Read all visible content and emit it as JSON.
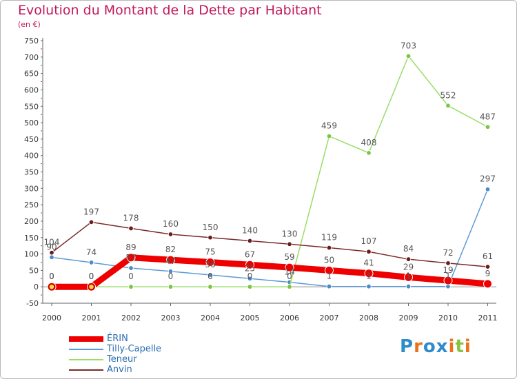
{
  "title": "Evolution du Montant de la Dette par Habitant",
  "subtitle": "(en €)",
  "brand": {
    "text": "Proxiti",
    "colors": [
      "#2e8bcc",
      "#e8731c",
      "#2e8bcc",
      "#2e8bcc",
      "#e8731c",
      "#86c440",
      "#e8731c"
    ]
  },
  "chart_data": {
    "type": "line",
    "x": [
      "2000",
      "2001",
      "2002",
      "2003",
      "2004",
      "2005",
      "2006",
      "2007",
      "2008",
      "2009",
      "2010",
      "2011"
    ],
    "ylim": [
      -50,
      750
    ],
    "yticks": [
      -50,
      0,
      50,
      100,
      150,
      200,
      250,
      300,
      350,
      400,
      450,
      500,
      550,
      600,
      650,
      700,
      750
    ],
    "grid": false,
    "legend_position": "bottom-left",
    "series": [
      {
        "name": "ÉRIN",
        "color": "#ee0000",
        "point_color": "#ee0000",
        "label_color": "#555555",
        "values": [
          0,
          0,
          89,
          82,
          75,
          67,
          59,
          50,
          41,
          29,
          19,
          9
        ],
        "labels": [
          "0",
          "0",
          "89",
          "82",
          "75",
          "67",
          "59",
          "50",
          "41",
          "29",
          "19",
          "9"
        ]
      },
      {
        "name": "Tilly-Capelle",
        "color": "#5b9bd5",
        "point_color": "#4a8cc8",
        "label_color": "#555555",
        "values": [
          90,
          74,
          57,
          47,
          36,
          25,
          14,
          1,
          1,
          1,
          1,
          297
        ],
        "labels": [
          "90",
          "74",
          "57",
          "47",
          "36",
          "25",
          "14",
          "1",
          "1",
          "1",
          "1",
          "297"
        ]
      },
      {
        "name": "Teneur",
        "color": "#99dd66",
        "point_color": "#7cc444",
        "label_color": "#555555",
        "values": [
          0,
          0,
          0,
          0,
          0,
          0,
          0,
          459,
          408,
          703,
          552,
          487
        ],
        "labels": [
          "0",
          "0",
          "0",
          "0",
          "0",
          "0",
          "0",
          "459",
          "408",
          "703",
          "552",
          "487"
        ]
      },
      {
        "name": "Anvin",
        "color": "#7a2a2a",
        "point_color": "#6b1c1c",
        "label_color": "#555555",
        "values": [
          104,
          197,
          178,
          160,
          150,
          140,
          130,
          119,
          107,
          84,
          72,
          61
        ],
        "labels": [
          "104",
          "197",
          "178",
          "160",
          "150",
          "140",
          "130",
          "119",
          "107",
          "84",
          "72",
          "61"
        ]
      }
    ]
  }
}
